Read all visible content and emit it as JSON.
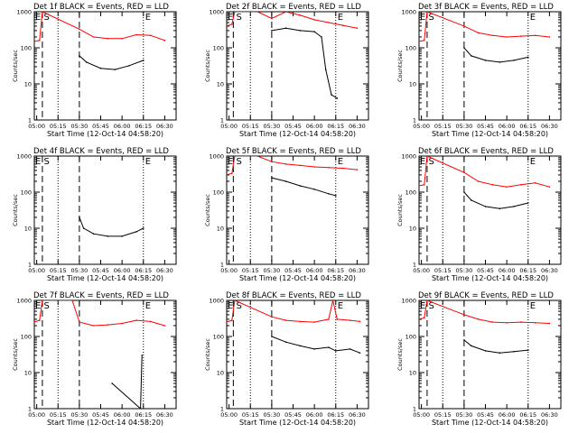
{
  "figure": {
    "panel_title_suffix": "BLACK = Events, RED = LLD",
    "xlabel": "Start Time (12-Oct-14 04:58:20)",
    "ylabel": "Counts/sec",
    "xticks": [
      "05:00",
      "05:15",
      "05:30",
      "05:45",
      "06:00",
      "06:15",
      "06:30"
    ],
    "yticks": [
      "1",
      "10",
      "100",
      "1000"
    ],
    "marker_start": "S",
    "marker_end": "E",
    "red_label": "LLD",
    "black_label": "Events",
    "colors": {
      "events": "#000000",
      "lld": "#ff0000",
      "axes": "#000000"
    }
  },
  "chart_data": [
    {
      "type": "line",
      "title": "Det 1f",
      "xlim": [
        "04:58:20",
        "06:38:00"
      ],
      "ylim": [
        1,
        1000
      ],
      "yscale": "log",
      "markers": {
        "start": "05:04",
        "attenuator_in": "05:15",
        "attenuator_out": "05:30",
        "end": "06:15"
      },
      "series": [
        {
          "name": "LLD",
          "color": "#ff0000",
          "points": [
            [
              "04:58",
              "150"
            ],
            [
              "05:02",
              "160"
            ],
            [
              "05:04",
              "1000"
            ],
            [
              "05:30",
              "330"
            ],
            [
              "05:40",
              "200"
            ],
            [
              "05:50",
              "180"
            ],
            [
              "06:00",
              "180"
            ],
            [
              "06:10",
              "230"
            ],
            [
              "06:20",
              "220"
            ],
            [
              "06:30",
              "160"
            ]
          ]
        },
        {
          "name": "Events",
          "color": "#000000",
          "points": [
            [
              "05:30",
              "60"
            ],
            [
              "05:35",
              "40"
            ],
            [
              "05:45",
              "27"
            ],
            [
              "05:55",
              "25"
            ],
            [
              "06:05",
              "32"
            ],
            [
              "06:15",
              "45"
            ]
          ]
        }
      ]
    },
    {
      "type": "line",
      "title": "Det 2f",
      "xlim": [
        "04:58:20",
        "06:38:00"
      ],
      "ylim": [
        1,
        1000
      ],
      "yscale": "log",
      "markers": {
        "start": "05:03",
        "attenuator_in": "05:15",
        "attenuator_out": "05:30",
        "end": "06:15"
      },
      "series": [
        {
          "name": "LLD",
          "color": "#ff0000",
          "points": [
            [
              "04:58",
              "400"
            ],
            [
              "05:02",
              "450"
            ],
            [
              "05:04",
              "1000"
            ],
            [
              "05:20",
              "1000"
            ],
            [
              "05:30",
              "650"
            ],
            [
              "05:40",
              "1000"
            ],
            [
              "05:50",
              "800"
            ],
            [
              "06:00",
              "600"
            ],
            [
              "06:10",
              "500"
            ],
            [
              "06:20",
              "420"
            ],
            [
              "06:30",
              "350"
            ]
          ]
        },
        {
          "name": "Events",
          "color": "#000000",
          "points": [
            [
              "05:30",
              "300"
            ],
            [
              "05:40",
              "350"
            ],
            [
              "05:50",
              "300"
            ],
            [
              "06:00",
              "280"
            ],
            [
              "06:05",
              "200"
            ],
            [
              "06:08",
              "25"
            ],
            [
              "06:12",
              "5"
            ],
            [
              "06:16",
              "4"
            ]
          ]
        }
      ]
    },
    {
      "type": "line",
      "title": "Det 3f",
      "xlim": [
        "04:58:20",
        "06:38:00"
      ],
      "ylim": [
        1,
        1000
      ],
      "yscale": "log",
      "markers": {
        "start": "05:04",
        "attenuator_in": "05:15",
        "attenuator_out": "05:30",
        "end": "06:15"
      },
      "series": [
        {
          "name": "LLD",
          "color": "#ff0000",
          "points": [
            [
              "04:58",
              "150"
            ],
            [
              "05:02",
              "160"
            ],
            [
              "05:04",
              "1000"
            ],
            [
              "05:30",
              "400"
            ],
            [
              "05:40",
              "260"
            ],
            [
              "05:50",
              "220"
            ],
            [
              "06:00",
              "200"
            ],
            [
              "06:10",
              "210"
            ],
            [
              "06:20",
              "220"
            ],
            [
              "06:30",
              "200"
            ]
          ]
        },
        {
          "name": "Events",
          "color": "#000000",
          "points": [
            [
              "05:30",
              "100"
            ],
            [
              "05:35",
              "60"
            ],
            [
              "05:45",
              "45"
            ],
            [
              "05:55",
              "40"
            ],
            [
              "06:05",
              "45"
            ],
            [
              "06:15",
              "55"
            ]
          ]
        }
      ]
    },
    {
      "type": "line",
      "title": "Det 4f",
      "xlim": [
        "04:58:20",
        "06:38:00"
      ],
      "ylim": [
        1,
        1000
      ],
      "yscale": "log",
      "markers": {
        "start": "05:04",
        "attenuator_in": "05:15",
        "attenuator_out": "05:30",
        "end": "06:15"
      },
      "series": [
        {
          "name": "Events",
          "color": "#000000",
          "points": [
            [
              "05:30",
              "20"
            ],
            [
              "05:33",
              "10"
            ],
            [
              "05:40",
              "7"
            ],
            [
              "05:50",
              "6"
            ],
            [
              "06:00",
              "6"
            ],
            [
              "06:10",
              "8"
            ],
            [
              "06:15",
              "10"
            ]
          ]
        }
      ]
    },
    {
      "type": "line",
      "title": "Det 5f",
      "xlim": [
        "04:58:20",
        "06:38:00"
      ],
      "ylim": [
        1,
        1000
      ],
      "yscale": "log",
      "markers": {
        "start": "05:03",
        "attenuator_in": "05:15",
        "attenuator_out": "05:30",
        "end": "06:15"
      },
      "series": [
        {
          "name": "LLD",
          "color": "#ff0000",
          "points": [
            [
              "04:58",
              "300"
            ],
            [
              "05:02",
              "330"
            ],
            [
              "05:04",
              "1000"
            ],
            [
              "05:20",
              "1000"
            ],
            [
              "05:30",
              "700"
            ],
            [
              "05:40",
              "600"
            ],
            [
              "05:50",
              "550"
            ],
            [
              "06:00",
              "500"
            ],
            [
              "06:10",
              "480"
            ],
            [
              "06:20",
              "460"
            ],
            [
              "06:30",
              "420"
            ]
          ]
        },
        {
          "name": "Events",
          "color": "#000000",
          "points": [
            [
              "05:30",
              "250"
            ],
            [
              "05:40",
              "200"
            ],
            [
              "05:50",
              "150"
            ],
            [
              "06:00",
              "120"
            ],
            [
              "06:10",
              "90"
            ],
            [
              "06:15",
              "80"
            ]
          ]
        }
      ]
    },
    {
      "type": "line",
      "title": "Det 6f",
      "xlim": [
        "04:58:20",
        "06:38:00"
      ],
      "ylim": [
        1,
        1000
      ],
      "yscale": "log",
      "markers": {
        "start": "05:04",
        "attenuator_in": "05:15",
        "attenuator_out": "05:30",
        "end": "06:15"
      },
      "series": [
        {
          "name": "LLD",
          "color": "#ff0000",
          "points": [
            [
              "04:58",
              "150"
            ],
            [
              "05:02",
              "160"
            ],
            [
              "05:04",
              "1000"
            ],
            [
              "05:30",
              "350"
            ],
            [
              "05:40",
              "200"
            ],
            [
              "05:50",
              "160"
            ],
            [
              "06:00",
              "140"
            ],
            [
              "06:10",
              "160"
            ],
            [
              "06:20",
              "180"
            ],
            [
              "06:30",
              "140"
            ]
          ]
        },
        {
          "name": "Events",
          "color": "#000000",
          "points": [
            [
              "05:30",
              "100"
            ],
            [
              "05:35",
              "60"
            ],
            [
              "05:45",
              "40"
            ],
            [
              "05:55",
              "35"
            ],
            [
              "06:05",
              "40"
            ],
            [
              "06:15",
              "50"
            ]
          ]
        }
      ]
    },
    {
      "type": "line",
      "title": "Det 7f",
      "xlim": [
        "04:58:20",
        "06:38:00"
      ],
      "ylim": [
        1,
        1000
      ],
      "yscale": "log",
      "markers": {
        "start": "05:04",
        "attenuator_in": "05:15",
        "attenuator_out": "05:30",
        "end": "06:15"
      },
      "series": [
        {
          "name": "LLD",
          "color": "#ff0000",
          "points": [
            [
              "04:58",
              "250"
            ],
            [
              "05:02",
              "280"
            ],
            [
              "05:04",
              "1000"
            ],
            [
              "05:25",
              "1000"
            ],
            [
              "05:30",
              "250"
            ],
            [
              "05:40",
              "200"
            ],
            [
              "05:50",
              "210"
            ],
            [
              "06:00",
              "230"
            ],
            [
              "06:10",
              "280"
            ],
            [
              "06:20",
              "260"
            ],
            [
              "06:30",
              "200"
            ]
          ]
        },
        {
          "name": "Events",
          "color": "#000000",
          "points": [
            [
              "05:53",
              "5"
            ],
            [
              "06:13",
              "1"
            ],
            [
              "06:14",
              "30"
            ]
          ]
        }
      ]
    },
    {
      "type": "line",
      "title": "Det 8f",
      "xlim": [
        "04:58:20",
        "06:38:00"
      ],
      "ylim": [
        1,
        1000
      ],
      "yscale": "log",
      "markers": {
        "start": "05:03",
        "attenuator_in": "05:15",
        "attenuator_out": "05:30",
        "end": "06:15"
      },
      "series": [
        {
          "name": "LLD",
          "color": "#ff0000",
          "points": [
            [
              "04:58",
              "250"
            ],
            [
              "05:02",
              "280"
            ],
            [
              "05:04",
              "1000"
            ],
            [
              "05:30",
              "350"
            ],
            [
              "05:40",
              "280"
            ],
            [
              "05:50",
              "260"
            ],
            [
              "06:00",
              "250"
            ],
            [
              "06:10",
              "300"
            ],
            [
              "06:13",
              "1000"
            ],
            [
              "06:16",
              "300"
            ],
            [
              "06:25",
              "280"
            ],
            [
              "06:32",
              "260"
            ]
          ]
        },
        {
          "name": "Events",
          "color": "#000000",
          "points": [
            [
              "05:30",
              "100"
            ],
            [
              "05:40",
              "70"
            ],
            [
              "05:50",
              "55"
            ],
            [
              "06:00",
              "45"
            ],
            [
              "06:10",
              "50"
            ],
            [
              "06:15",
              "40"
            ],
            [
              "06:25",
              "45"
            ],
            [
              "06:32",
              "35"
            ]
          ]
        }
      ]
    },
    {
      "type": "line",
      "title": "Det 9f",
      "xlim": [
        "04:58:20",
        "06:38:00"
      ],
      "ylim": [
        1,
        1000
      ],
      "yscale": "log",
      "markers": {
        "start": "05:04",
        "attenuator_in": "05:15",
        "attenuator_out": "05:30",
        "end": "06:15"
      },
      "series": [
        {
          "name": "LLD",
          "color": "#ff0000",
          "points": [
            [
              "04:58",
              "300"
            ],
            [
              "05:02",
              "330"
            ],
            [
              "05:04",
              "1000"
            ],
            [
              "05:30",
              "400"
            ],
            [
              "05:40",
              "300"
            ],
            [
              "05:50",
              "250"
            ],
            [
              "06:00",
              "240"
            ],
            [
              "06:10",
              "250"
            ],
            [
              "06:20",
              "240"
            ],
            [
              "06:30",
              "230"
            ]
          ]
        },
        {
          "name": "Events",
          "color": "#000000",
          "points": [
            [
              "05:30",
              "80"
            ],
            [
              "05:35",
              "55"
            ],
            [
              "05:45",
              "40"
            ],
            [
              "05:55",
              "35"
            ],
            [
              "06:05",
              "38"
            ],
            [
              "06:15",
              "42"
            ]
          ]
        }
      ]
    }
  ]
}
